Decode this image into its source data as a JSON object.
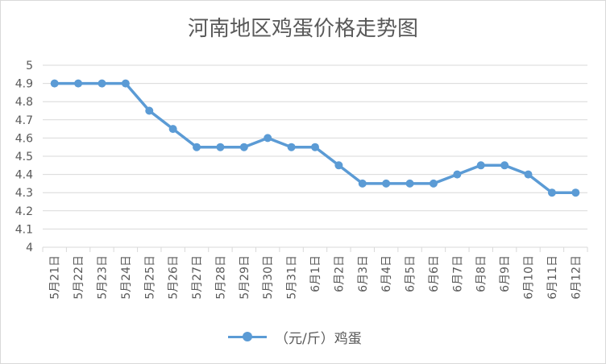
{
  "chart_data": {
    "type": "line",
    "title": "河南地区鸡蛋价格走势图",
    "xlabel": "",
    "ylabel": "",
    "categories": [
      "5月21日",
      "5月22日",
      "5月23日",
      "5月24日",
      "5月25日",
      "5月26日",
      "5月27日",
      "5月28日",
      "5月29日",
      "5月30日",
      "5月31日",
      "6月1日",
      "6月2日",
      "6月3日",
      "6月4日",
      "6月5日",
      "6月6日",
      "6月7日",
      "6月8日",
      "6月9日",
      "6月10日",
      "6月11日",
      "6月12日"
    ],
    "series": [
      {
        "name": "（元/斤）鸡蛋",
        "values": [
          4.9,
          4.9,
          4.9,
          4.9,
          4.75,
          4.65,
          4.55,
          4.55,
          4.55,
          4.6,
          4.55,
          4.55,
          4.45,
          4.35,
          4.35,
          4.35,
          4.35,
          4.4,
          4.45,
          4.45,
          4.4,
          4.3,
          4.3
        ]
      }
    ],
    "ylim": [
      4,
      5
    ],
    "yticks": [
      "4",
      "4.1",
      "4.2",
      "4.3",
      "4.4",
      "4.5",
      "4.6",
      "4.7",
      "4.8",
      "4.9",
      "5"
    ],
    "grid": true,
    "legend_position": "bottom",
    "series_color": "#5b9bd5"
  }
}
